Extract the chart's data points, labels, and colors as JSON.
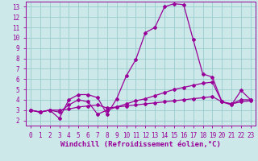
{
  "xlabel": "Windchill (Refroidissement éolien,°C)",
  "background_color": "#cce8e8",
  "grid_color": "#99cccc",
  "line_color": "#990099",
  "xlim": [
    -0.5,
    23.5
  ],
  "ylim": [
    1.5,
    13.5
  ],
  "xticks": [
    0,
    1,
    2,
    3,
    4,
    5,
    6,
    7,
    8,
    9,
    10,
    11,
    12,
    13,
    14,
    15,
    16,
    17,
    18,
    19,
    20,
    21,
    22,
    23
  ],
  "yticks": [
    2,
    3,
    4,
    5,
    6,
    7,
    8,
    9,
    10,
    11,
    12,
    13
  ],
  "line1_x": [
    0,
    1,
    2,
    3,
    4,
    5,
    6,
    7,
    8,
    9,
    10,
    11,
    12,
    13,
    14,
    15,
    16,
    17,
    18,
    19,
    20,
    21,
    22,
    23
  ],
  "line1_y": [
    3.0,
    2.8,
    3.0,
    2.2,
    4.0,
    4.5,
    4.5,
    4.2,
    2.6,
    4.1,
    6.3,
    7.9,
    10.5,
    11.0,
    13.0,
    13.3,
    13.2,
    9.8,
    6.5,
    6.2,
    3.8,
    3.5,
    4.9,
    4.0
  ],
  "line2_x": [
    0,
    1,
    2,
    3,
    4,
    5,
    6,
    7,
    8,
    9,
    10,
    11,
    12,
    13,
    14,
    15,
    16,
    17,
    18,
    19,
    20,
    21,
    22,
    23
  ],
  "line2_y": [
    3.0,
    2.8,
    3.0,
    2.8,
    3.5,
    4.0,
    3.8,
    2.6,
    3.0,
    3.3,
    3.6,
    3.9,
    4.1,
    4.4,
    4.7,
    5.0,
    5.2,
    5.4,
    5.6,
    5.7,
    3.8,
    3.6,
    4.0,
    4.0
  ],
  "line3_x": [
    0,
    1,
    2,
    3,
    4,
    5,
    6,
    7,
    8,
    9,
    10,
    11,
    12,
    13,
    14,
    15,
    16,
    17,
    18,
    19,
    20,
    21,
    22,
    23
  ],
  "line3_y": [
    3.0,
    2.8,
    3.0,
    3.0,
    3.1,
    3.3,
    3.4,
    3.5,
    3.2,
    3.3,
    3.4,
    3.5,
    3.6,
    3.7,
    3.8,
    3.9,
    4.0,
    4.1,
    4.2,
    4.3,
    3.8,
    3.6,
    3.8,
    3.9
  ],
  "marker": "D",
  "markersize": 2.0,
  "linewidth": 0.9,
  "xlabel_fontsize": 6.5,
  "tick_fontsize": 5.5
}
